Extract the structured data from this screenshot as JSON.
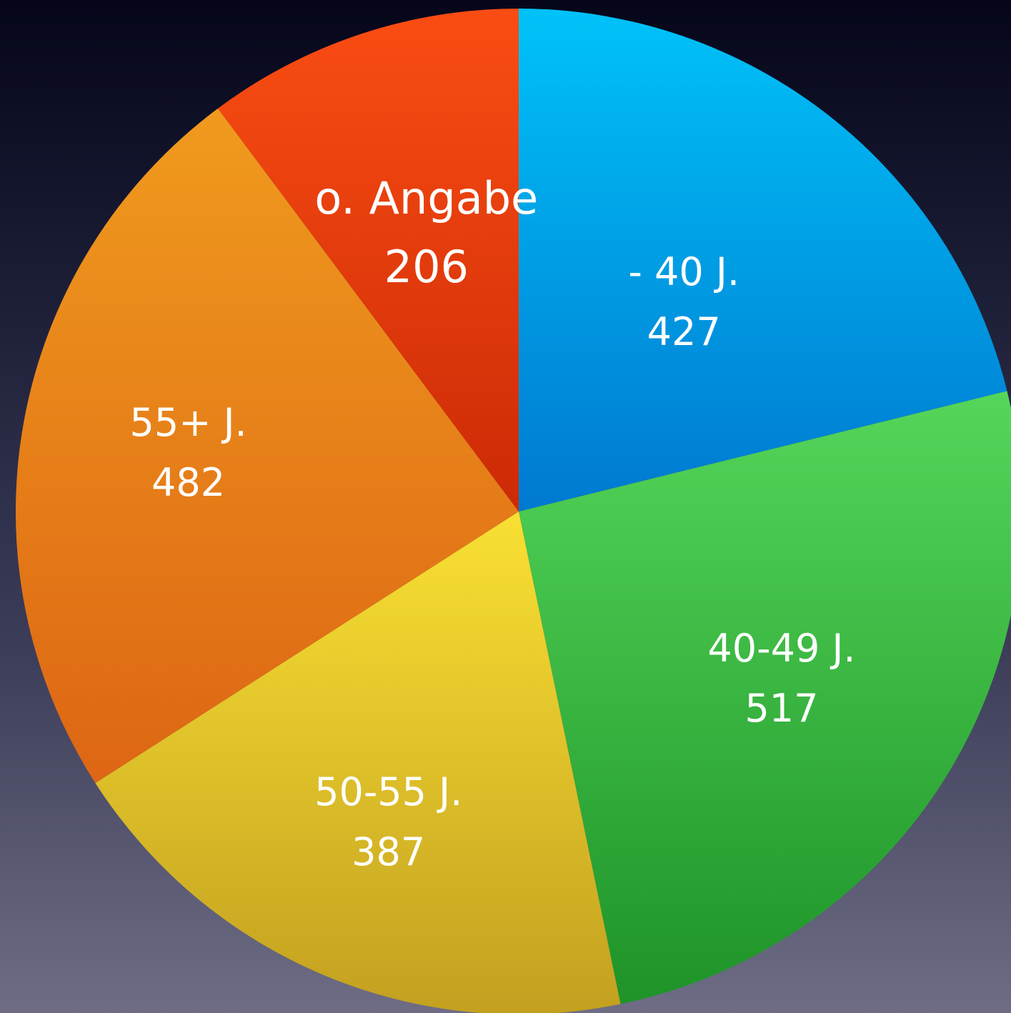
{
  "chart_data": {
    "type": "pie",
    "start_angle_deg": 0,
    "direction": "clockwise",
    "slices": [
      {
        "label": "- 40 J.",
        "value": 427,
        "color_top": "#00c2f8",
        "color_bottom": "#0079d0"
      },
      {
        "label": "40-49 J.",
        "value": 517,
        "color_top": "#55d65a",
        "color_bottom": "#1e9328"
      },
      {
        "label": "50-55 J.",
        "value": 387,
        "color_top": "#f9e033",
        "color_bottom": "#c3a020"
      },
      {
        "label": "55+ J.",
        "value": 482,
        "color_top": "#f09a1e",
        "color_bottom": "#dd6614"
      },
      {
        "label": "o. Angabe",
        "value": 206,
        "color_top": "#fa4d13",
        "color_bottom": "#cc2a06"
      }
    ]
  }
}
